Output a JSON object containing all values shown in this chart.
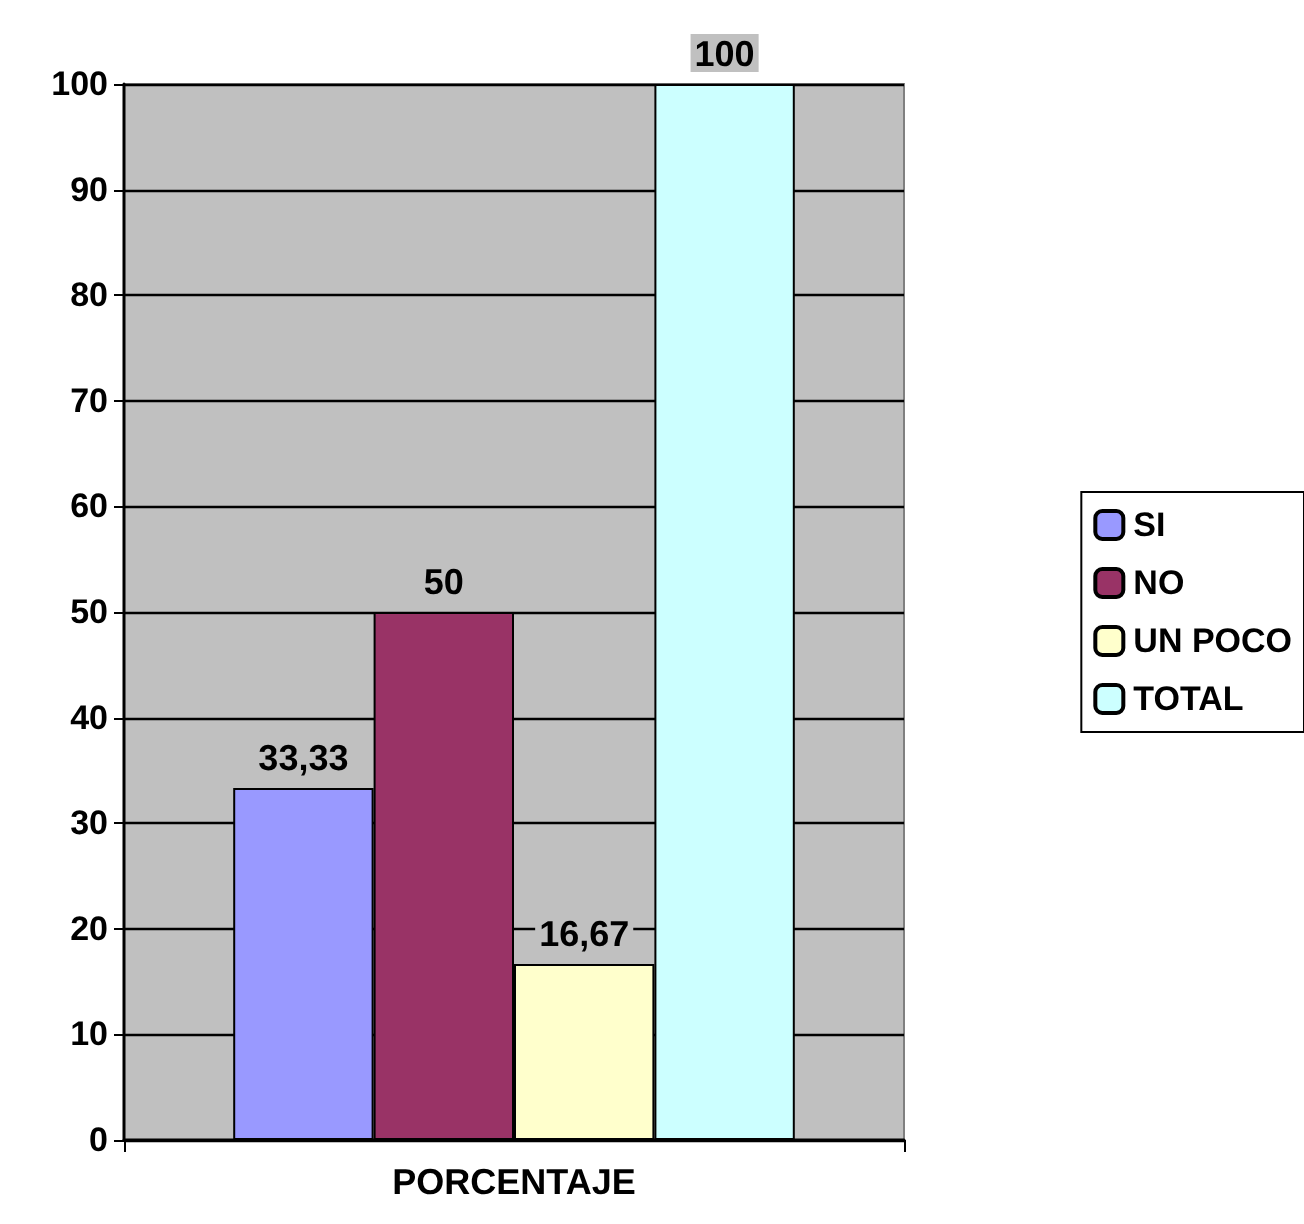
{
  "chart_data": {
    "type": "bar",
    "categories": [
      "PORCENTAJE"
    ],
    "series": [
      {
        "name": "SI",
        "color": "#9999ff",
        "values": [
          33.33
        ],
        "value_labels": [
          "33,33"
        ]
      },
      {
        "name": "NO",
        "color": "#993366",
        "values": [
          50
        ],
        "value_labels": [
          "50"
        ]
      },
      {
        "name": "UN POCO",
        "color": "#ffffcc",
        "values": [
          16.67
        ],
        "value_labels": [
          "16,67"
        ]
      },
      {
        "name": "TOTAL",
        "color": "#ccffff",
        "values": [
          100
        ],
        "value_labels": [
          "100"
        ]
      }
    ],
    "ylim": [
      0,
      100
    ],
    "yticks": [
      0,
      10,
      20,
      30,
      40,
      50,
      60,
      70,
      80,
      90,
      100
    ],
    "grid": "y",
    "legend": "right"
  }
}
